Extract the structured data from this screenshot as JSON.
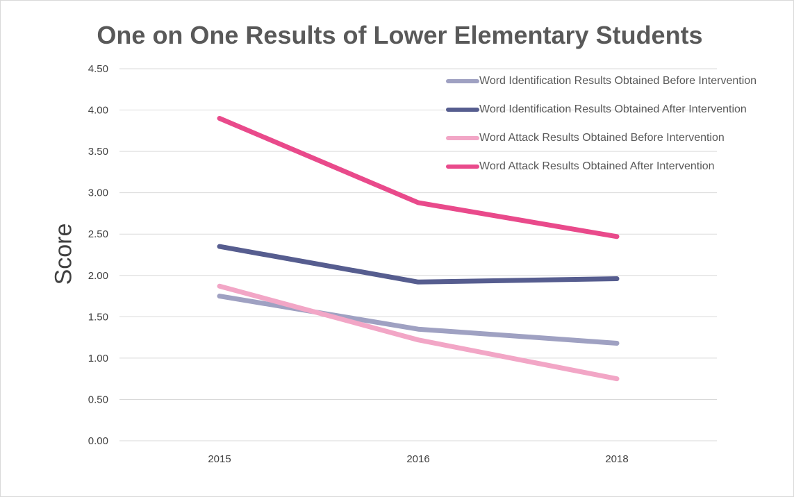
{
  "chart_data": {
    "type": "line",
    "title": "One on One Results of Lower Elementary Students",
    "xlabel": "",
    "ylabel": "Score",
    "categories": [
      "2015",
      "2016",
      "2018"
    ],
    "ylim": [
      0,
      4.5
    ],
    "yticks": [
      "0.00",
      "0.50",
      "1.00",
      "1.50",
      "2.00",
      "2.50",
      "3.00",
      "3.50",
      "4.00",
      "4.50"
    ],
    "grid": true,
    "legend_position": "top-right",
    "series": [
      {
        "name": "Word Identification Results Obtained Before Intervention",
        "color": "#9fa1c2",
        "values": [
          1.75,
          1.35,
          1.18
        ]
      },
      {
        "name": "Word Identification Results Obtained After Intervention",
        "color": "#565d8f",
        "values": [
          2.35,
          1.92,
          1.96
        ]
      },
      {
        "name": "Word Attack Results Obtained Before Intervention",
        "color": "#f2a6c6",
        "values": [
          1.87,
          1.22,
          0.75
        ]
      },
      {
        "name": "Word Attack Results Obtained After Intervention",
        "color": "#e94a8b",
        "values": [
          3.9,
          2.88,
          2.47
        ]
      }
    ]
  }
}
